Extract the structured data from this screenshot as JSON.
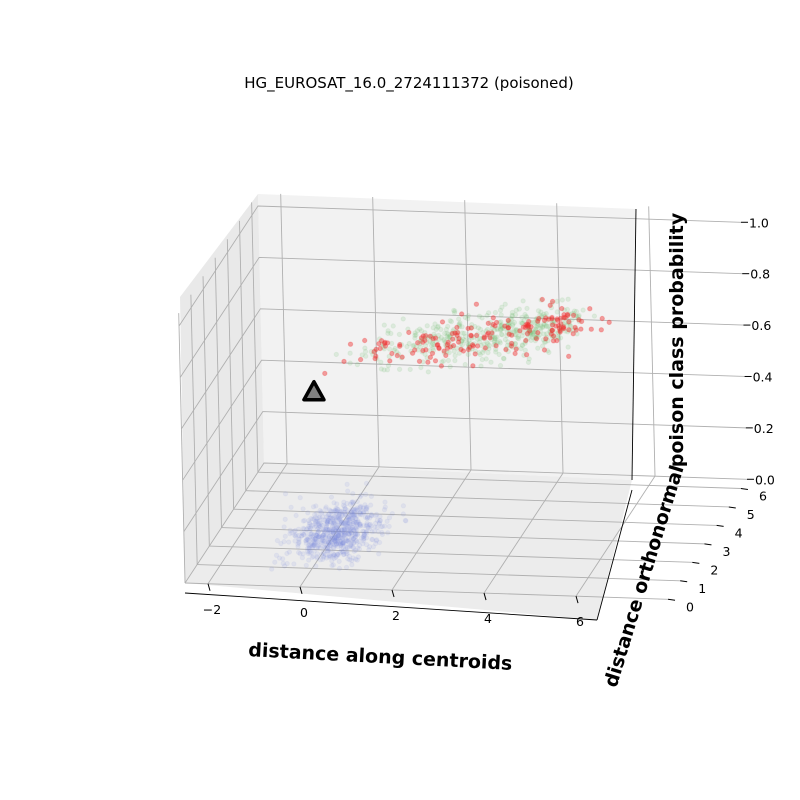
{
  "chart_data": {
    "type": "scatter",
    "dimensions": 3,
    "title": "HG_EUROSAT_16.0_2724111372 (poisoned)",
    "xlabel": "distance along centroids",
    "ylabel": "distance orthonormal",
    "zlabel": "poison class probability",
    "xlim": [
      -2.5,
      8
    ],
    "ylim": [
      0,
      6.5
    ],
    "zlim": [
      0,
      1.05
    ],
    "x_ticks": [
      "−2",
      "0",
      "2",
      "4",
      "6"
    ],
    "y_ticks": [
      "0",
      "1",
      "2",
      "3",
      "4",
      "5",
      "6"
    ],
    "z_ticks": [
      "0.0",
      "0.2",
      "0.4",
      "0.6",
      "0.8",
      "1.0"
    ],
    "grid": true,
    "series": [
      {
        "color": "#7b8fdc",
        "alpha": 0.12,
        "marker": "circle",
        "cluster": {
          "x_center": 0,
          "x_spread": 0.45,
          "y_center": 3.0,
          "y_spread": 0.7,
          "z_center": 0.0,
          "z_spread": 0.03,
          "count": 700
        }
      },
      {
        "color": "#7ac07a",
        "alpha": 0.18,
        "marker": "circle",
        "cluster": {
          "x_start": 0.5,
          "x_end": 5.2,
          "y_center": 2.8,
          "y_spread": 0.6,
          "z_start": 0.72,
          "z_end": 0.84,
          "z_spread": 0.03,
          "count": 450
        }
      },
      {
        "color": "#f03030",
        "alpha": 0.45,
        "marker": "circle",
        "cluster": {
          "x_start": 0.3,
          "x_end": 5.6,
          "y_center": 2.6,
          "y_spread": 0.5,
          "z_start": 0.7,
          "z_end": 0.88,
          "z_spread": 0.03,
          "count": 170
        }
      },
      {
        "color": "#808080",
        "alpha": 1.0,
        "marker": "triangle",
        "points": [
          {
            "x": -0.2,
            "y": 2.2,
            "z": 0.6
          }
        ]
      }
    ]
  }
}
